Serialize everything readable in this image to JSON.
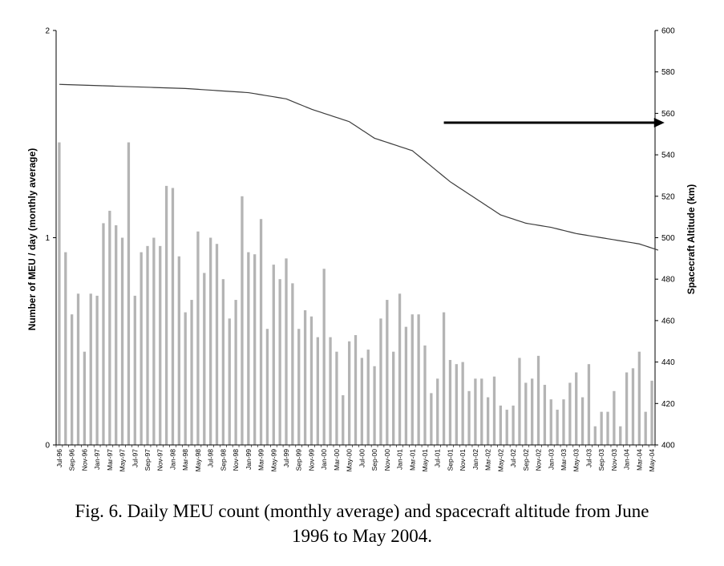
{
  "caption": {
    "line1": "Fig. 6. Daily MEU count (monthly average) and spacecraft altitude from June",
    "line2": "1996 to May 2004."
  },
  "chart_data": {
    "type": "bar",
    "title": "",
    "left_axis": {
      "label": "Number of MEU / day (monthly average)",
      "ylim": [
        0,
        2
      ],
      "ticks": [
        0,
        1,
        2
      ]
    },
    "right_axis": {
      "label": "Spacecraft Altitude (km)",
      "ylim": [
        400,
        600
      ],
      "ticks": [
        400,
        420,
        440,
        460,
        480,
        500,
        520,
        540,
        560,
        580,
        600
      ]
    },
    "x_tick_labels": [
      "Jul-96",
      "Sep-96",
      "Nov-96",
      "Jan-97",
      "Mar-97",
      "May-97",
      "Jul-97",
      "Sep-97",
      "Nov-97",
      "Jan-98",
      "Mar-98",
      "May-98",
      "Jul-98",
      "Sep-98",
      "Nov-98",
      "Jan-99",
      "Mar-99",
      "May-99",
      "Jul-99",
      "Sep-99",
      "Nov-99",
      "Jan-00",
      "Mar-00",
      "May-00",
      "Jul-00",
      "Sep-00",
      "Nov-00",
      "Jan-01",
      "Mar-01",
      "May-01",
      "Jul-01",
      "Sep-01",
      "Nov-01",
      "Jan-02",
      "Mar-02",
      "May-02",
      "Jul-02",
      "Sep-02",
      "Nov-02",
      "Jan-03",
      "Mar-03",
      "May-03",
      "Jul-03",
      "Sep-03",
      "Nov-03",
      "Jan-04",
      "Mar-04",
      "May-04"
    ],
    "colors": {
      "bars": "#b4b4b4",
      "line": "#3c3c3c",
      "arrow": "#000000",
      "axis": "#000000"
    },
    "series": [
      {
        "name": "MEU count (monthly average)",
        "axis": "left",
        "type": "bar",
        "values": [
          1.46,
          0.93,
          0.63,
          0.73,
          0.45,
          0.73,
          0.72,
          1.07,
          1.13,
          1.06,
          1.0,
          1.46,
          0.72,
          0.93,
          0.96,
          1.0,
          0.96,
          1.25,
          1.24,
          0.91,
          0.64,
          0.7,
          1.03,
          0.83,
          1.0,
          0.97,
          0.8,
          0.61,
          0.7,
          1.2,
          0.93,
          0.92,
          1.09,
          0.56,
          0.87,
          0.8,
          0.9,
          0.78,
          0.56,
          0.65,
          0.62,
          0.52,
          0.85,
          0.52,
          0.45,
          0.24,
          0.5,
          0.53,
          0.42,
          0.46,
          0.38,
          0.61,
          0.7,
          0.45,
          0.73,
          0.57,
          0.63,
          0.63,
          0.48,
          0.25,
          0.32,
          0.64,
          0.41,
          0.39,
          0.4,
          0.26,
          0.32,
          0.32,
          0.23,
          0.33,
          0.19,
          0.17,
          0.19,
          0.42,
          0.3,
          0.32,
          0.43,
          0.29,
          0.22,
          0.17,
          0.22,
          0.3,
          0.35,
          0.23,
          0.39,
          0.09,
          0.16,
          0.16,
          0.26,
          0.09,
          0.35,
          0.37,
          0.45,
          0.16,
          0.31
        ]
      },
      {
        "name": "Spacecraft altitude",
        "axis": "right",
        "type": "line",
        "month_index": [
          0,
          10,
          20,
          30,
          36,
          40,
          46,
          50,
          52,
          56,
          62,
          66,
          70,
          72,
          74,
          78,
          82,
          86,
          92,
          95
        ],
        "values": [
          574,
          573,
          572,
          570,
          567,
          562,
          556,
          548,
          546,
          542,
          527,
          519,
          511,
          509,
          507,
          505,
          502,
          500,
          497,
          494
        ]
      }
    ],
    "annotations": [
      {
        "type": "arrow",
        "direction": "right",
        "at_altitude_km": 555.5,
        "from_month": 61,
        "to_month": 96
      }
    ]
  }
}
